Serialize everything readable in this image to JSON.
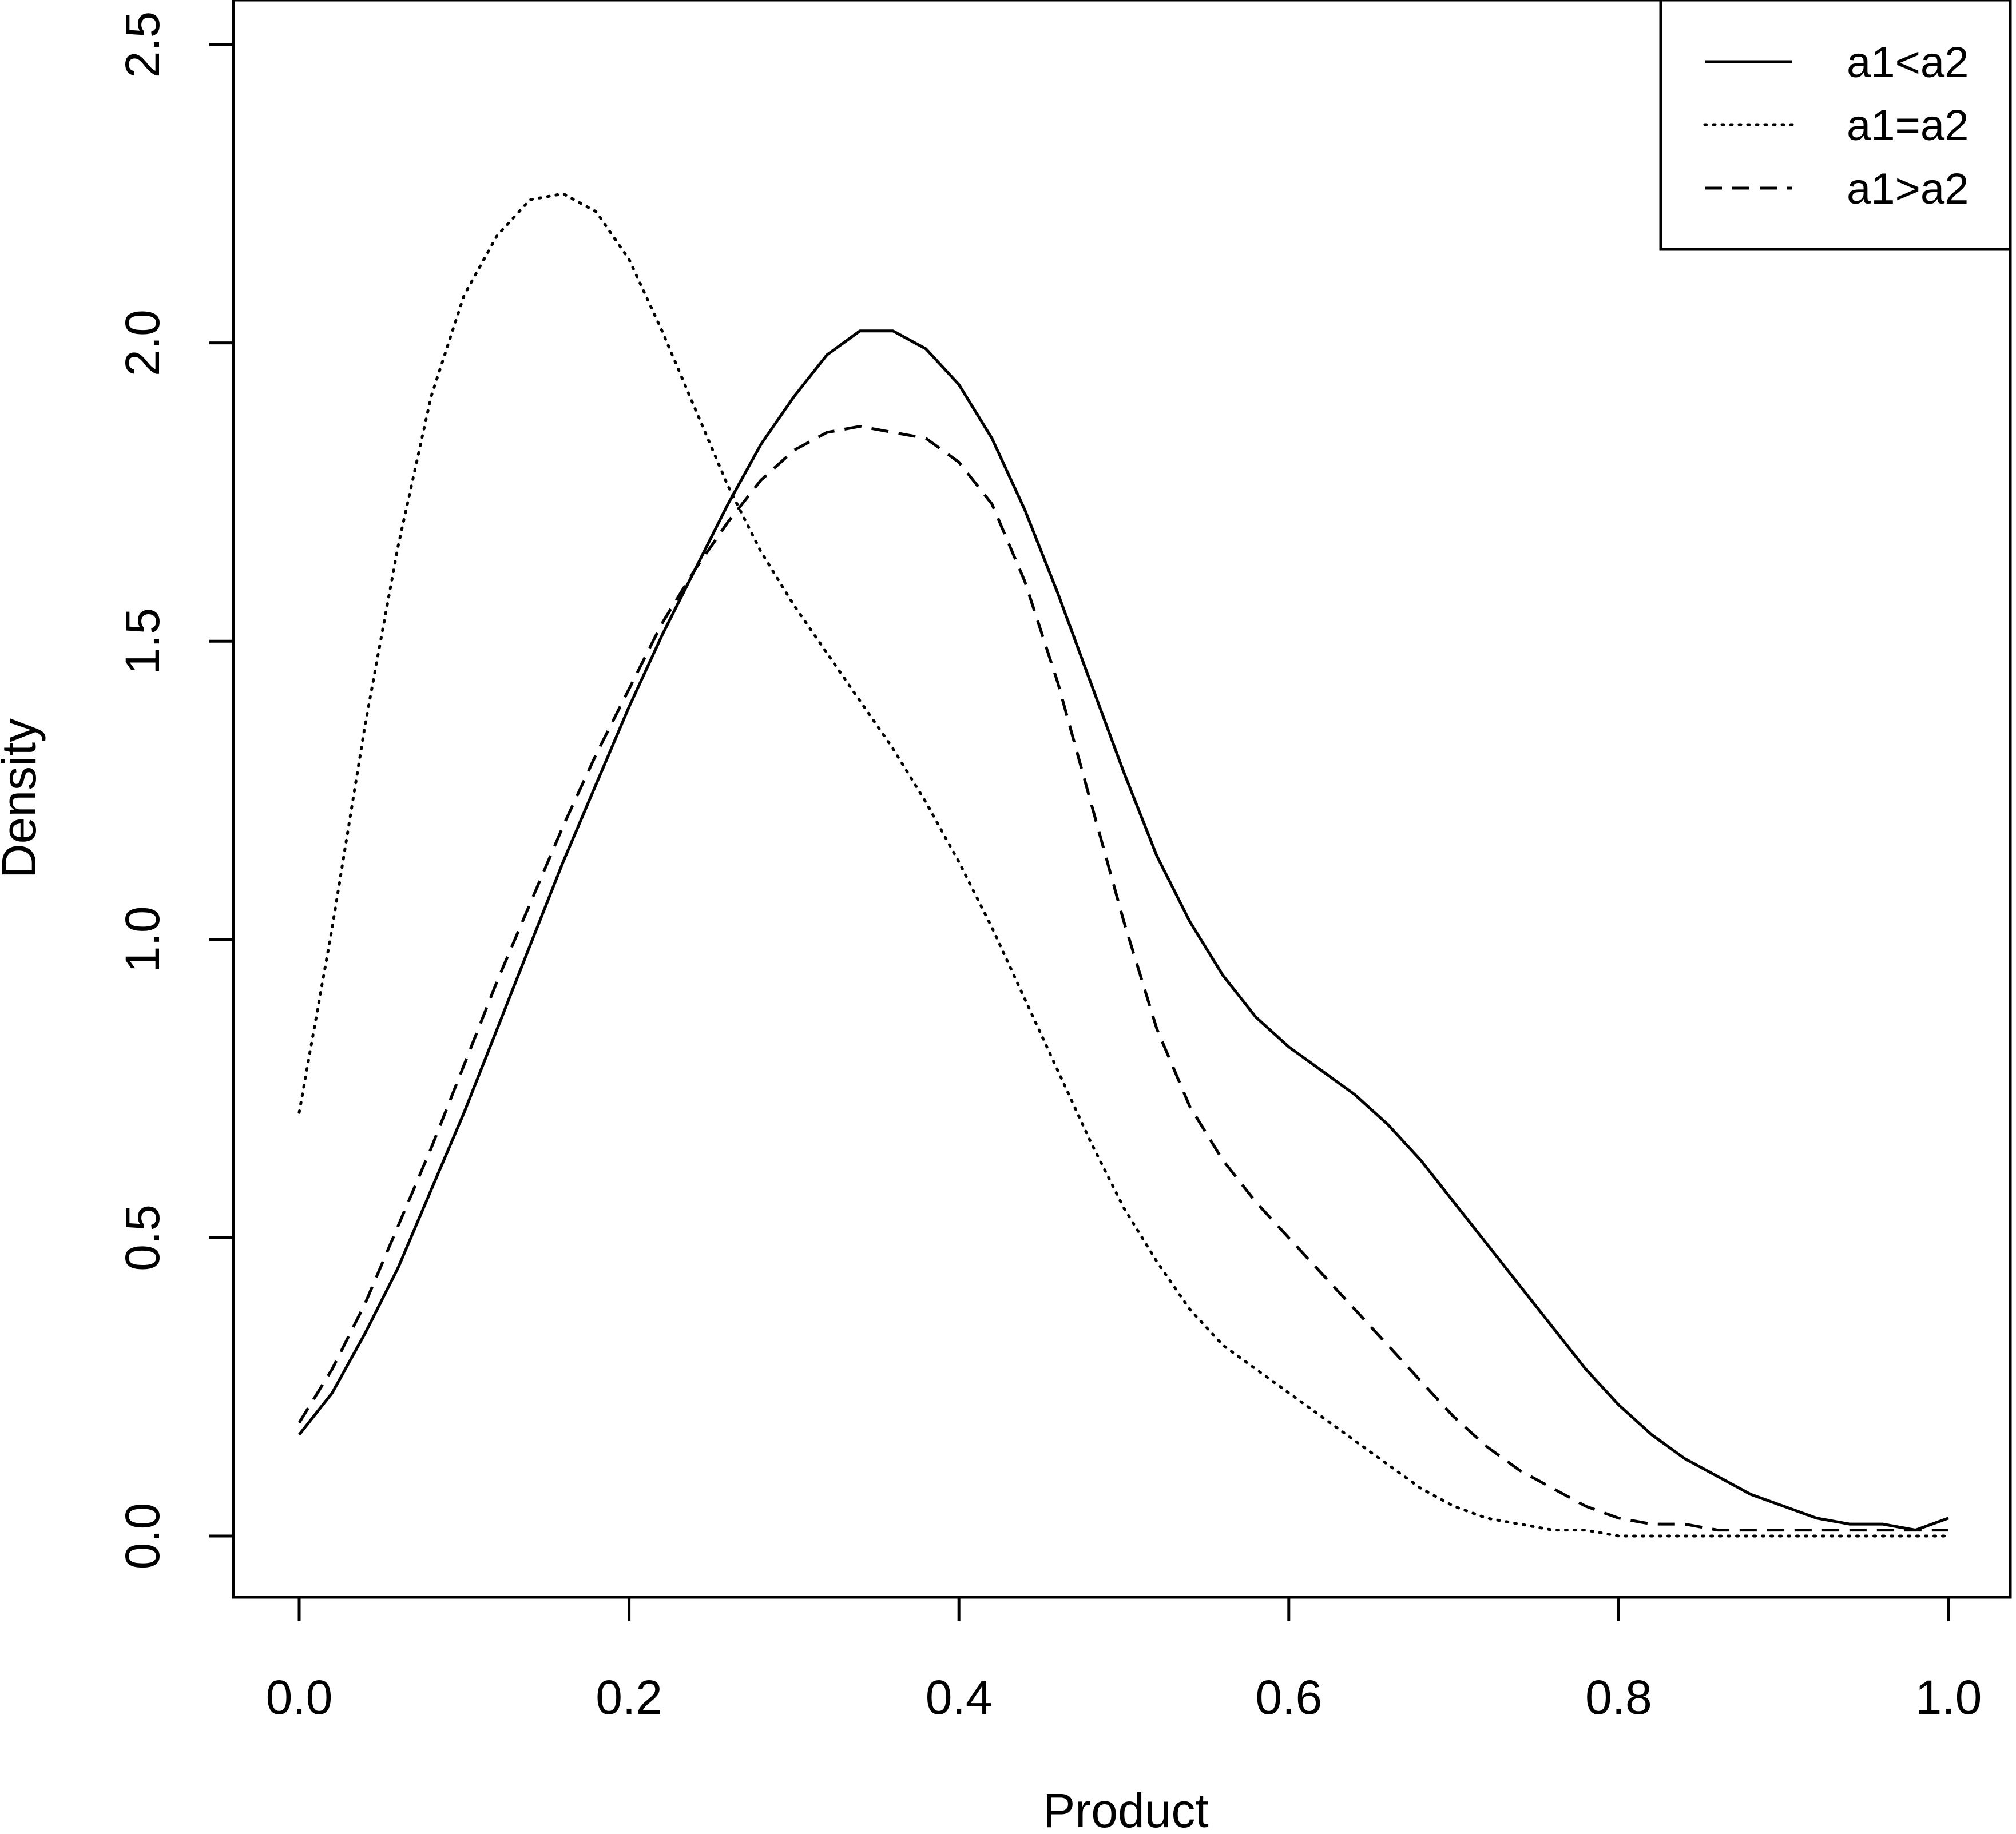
{
  "chart_data": {
    "type": "line",
    "title": "",
    "xlabel": "Product",
    "ylabel": "Density",
    "xlim": [
      0.0,
      1.0
    ],
    "ylim": [
      0.0,
      2.5
    ],
    "x_ticks": [
      "0.0",
      "0.2",
      "0.4",
      "0.6",
      "0.8",
      "1.0"
    ],
    "y_ticks": [
      "0.0",
      "0.5",
      "1.0",
      "1.5",
      "2.0",
      "2.5"
    ],
    "grid": false,
    "legend_position": "top-right",
    "series": [
      {
        "name": "a1<a2",
        "line_style": "solid",
        "x": [
          0.0,
          0.02,
          0.04,
          0.06,
          0.08,
          0.1,
          0.12,
          0.14,
          0.16,
          0.18,
          0.2,
          0.22,
          0.24,
          0.26,
          0.28,
          0.3,
          0.32,
          0.34,
          0.36,
          0.38,
          0.4,
          0.42,
          0.44,
          0.46,
          0.48,
          0.5,
          0.52,
          0.54,
          0.56,
          0.58,
          0.6,
          0.62,
          0.64,
          0.66,
          0.68,
          0.7,
          0.72,
          0.74,
          0.76,
          0.78,
          0.8,
          0.82,
          0.84,
          0.86,
          0.88,
          0.9,
          0.92,
          0.94,
          0.96,
          0.98,
          1.0
        ],
        "y": [
          0.17,
          0.24,
          0.34,
          0.45,
          0.58,
          0.71,
          0.85,
          0.99,
          1.13,
          1.26,
          1.39,
          1.51,
          1.62,
          1.73,
          1.83,
          1.91,
          1.98,
          2.02,
          2.02,
          1.99,
          1.93,
          1.84,
          1.72,
          1.58,
          1.43,
          1.28,
          1.14,
          1.03,
          0.94,
          0.87,
          0.82,
          0.78,
          0.74,
          0.69,
          0.63,
          0.56,
          0.49,
          0.42,
          0.35,
          0.28,
          0.22,
          0.17,
          0.13,
          0.1,
          0.07,
          0.05,
          0.03,
          0.02,
          0.02,
          0.01,
          0.03
        ]
      },
      {
        "name": "a1=a2",
        "line_style": "dotted",
        "x": [
          0.0,
          0.02,
          0.04,
          0.06,
          0.08,
          0.1,
          0.12,
          0.14,
          0.16,
          0.18,
          0.2,
          0.22,
          0.24,
          0.26,
          0.28,
          0.3,
          0.32,
          0.34,
          0.36,
          0.38,
          0.4,
          0.42,
          0.44,
          0.46,
          0.48,
          0.5,
          0.52,
          0.54,
          0.56,
          0.58,
          0.6,
          0.62,
          0.64,
          0.66,
          0.68,
          0.7,
          0.72,
          0.74,
          0.76,
          0.78,
          0.8,
          0.82,
          0.84,
          0.86,
          0.88,
          0.9,
          0.92,
          0.94,
          0.96,
          0.98,
          1.0
        ],
        "y": [
          0.71,
          1.02,
          1.36,
          1.66,
          1.91,
          2.08,
          2.18,
          2.24,
          2.25,
          2.22,
          2.14,
          2.02,
          1.89,
          1.76,
          1.65,
          1.56,
          1.48,
          1.4,
          1.32,
          1.23,
          1.13,
          1.02,
          0.9,
          0.78,
          0.66,
          0.55,
          0.46,
          0.38,
          0.32,
          0.28,
          0.24,
          0.2,
          0.16,
          0.12,
          0.08,
          0.05,
          0.03,
          0.02,
          0.01,
          0.01,
          0.0,
          0.0,
          0.0,
          0.0,
          0.0,
          0.0,
          0.0,
          0.0,
          0.0,
          0.0,
          0.0
        ]
      },
      {
        "name": "a1>a2",
        "line_style": "dashed",
        "x": [
          0.0,
          0.02,
          0.04,
          0.06,
          0.08,
          0.1,
          0.12,
          0.14,
          0.16,
          0.18,
          0.2,
          0.22,
          0.24,
          0.26,
          0.28,
          0.3,
          0.32,
          0.34,
          0.36,
          0.38,
          0.4,
          0.42,
          0.44,
          0.46,
          0.48,
          0.5,
          0.52,
          0.54,
          0.56,
          0.58,
          0.6,
          0.62,
          0.64,
          0.66,
          0.68,
          0.7,
          0.72,
          0.74,
          0.76,
          0.78,
          0.8,
          0.82,
          0.84,
          0.86,
          0.88,
          0.9,
          0.92,
          0.94,
          0.96,
          0.98,
          1.0
        ],
        "y": [
          0.19,
          0.28,
          0.39,
          0.52,
          0.65,
          0.79,
          0.93,
          1.06,
          1.19,
          1.31,
          1.42,
          1.53,
          1.62,
          1.7,
          1.77,
          1.82,
          1.85,
          1.86,
          1.85,
          1.84,
          1.8,
          1.73,
          1.6,
          1.43,
          1.23,
          1.03,
          0.85,
          0.72,
          0.63,
          0.56,
          0.5,
          0.44,
          0.38,
          0.32,
          0.26,
          0.2,
          0.15,
          0.11,
          0.08,
          0.05,
          0.03,
          0.02,
          0.02,
          0.01,
          0.01,
          0.01,
          0.01,
          0.01,
          0.01,
          0.01,
          0.01
        ]
      }
    ]
  }
}
